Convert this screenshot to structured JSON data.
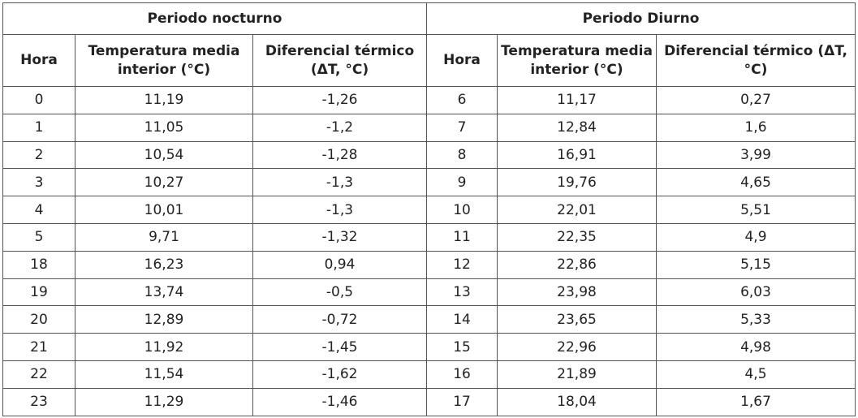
{
  "table": {
    "group_headers": [
      "Periodo nocturno",
      "Periodo Diurno"
    ],
    "columns": [
      "Hora",
      "Temperatura media interior (°C)",
      "Diferencial térmico (ΔT, °C)",
      "Hora",
      "Temperatura media interior (°C)",
      "Diferencial térmico (ΔT, °C)"
    ],
    "rows": [
      [
        "0",
        "11,19",
        "-1,26",
        "6",
        "11,17",
        "0,27"
      ],
      [
        "1",
        "11,05",
        "-1,2",
        "7",
        "12,84",
        "1,6"
      ],
      [
        "2",
        "10,54",
        "-1,28",
        "8",
        "16,91",
        "3,99"
      ],
      [
        "3",
        "10,27",
        "-1,3",
        "9",
        "19,76",
        "4,65"
      ],
      [
        "4",
        "10,01",
        "-1,3",
        "10",
        "22,01",
        "5,51"
      ],
      [
        "5",
        "9,71",
        "-1,32",
        "11",
        "22,35",
        "4,9"
      ],
      [
        "18",
        "16,23",
        "0,94",
        "12",
        "22,86",
        "5,15"
      ],
      [
        "19",
        "13,74",
        "-0,5",
        "13",
        "23,98",
        "6,03"
      ],
      [
        "20",
        "12,89",
        "-0,72",
        "14",
        "23,65",
        "5,33"
      ],
      [
        "21",
        "11,92",
        "-1,45",
        "15",
        "22,96",
        "4,98"
      ],
      [
        "22",
        "11,54",
        "-1,62",
        "16",
        "21,89",
        "4,5"
      ],
      [
        "23",
        "11,29",
        "-1,46",
        "17",
        "18,04",
        "1,67"
      ]
    ]
  }
}
